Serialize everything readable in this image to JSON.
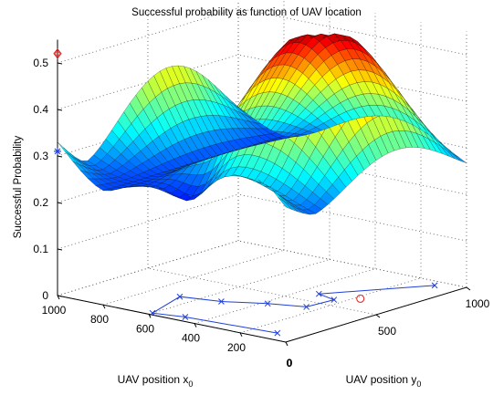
{
  "chart_data": {
    "type": "surface",
    "title": "Successful probability as function of UAV location",
    "xlabel": "UAV position x",
    "xlabel_sub": "0",
    "ylabel": "UAV position y",
    "ylabel_sub": "0",
    "zlabel": "Successful Probability",
    "x_ticks": [
      "1000",
      "800",
      "600",
      "400",
      "200",
      "0"
    ],
    "y_ticks": [
      "0",
      "500",
      "1000"
    ],
    "z_ticks": [
      "0",
      "0.1",
      "0.2",
      "0.3",
      "0.4",
      "0.5"
    ],
    "xlim": [
      0,
      1000
    ],
    "ylim": [
      0,
      1000
    ],
    "zlim": [
      0,
      0.55
    ],
    "grid": true,
    "colormap": "jet",
    "trajectory": {
      "color": "#1f3fd8",
      "marker": "x",
      "points": [
        {
          "x": 100,
          "y": 80
        },
        {
          "x": 480,
          "y": 50
        },
        {
          "x": 600,
          "y": 20
        },
        {
          "x": 670,
          "y": 260
        },
        {
          "x": 520,
          "y": 300
        },
        {
          "x": 380,
          "y": 380
        },
        {
          "x": 250,
          "y": 430
        },
        {
          "x": 240,
          "y": 570
        },
        {
          "x": 330,
          "y": 600
        },
        {
          "x": 100,
          "y": 950
        }
      ]
    },
    "optimum_marker": {
      "x": 180,
      "y": 640,
      "z": 0.52,
      "color": "#e02020",
      "marker": "o"
    },
    "start_marker": {
      "x": 1000,
      "y": 0,
      "z": 0.31,
      "color": "#1f3fd8",
      "marker": "*"
    }
  }
}
